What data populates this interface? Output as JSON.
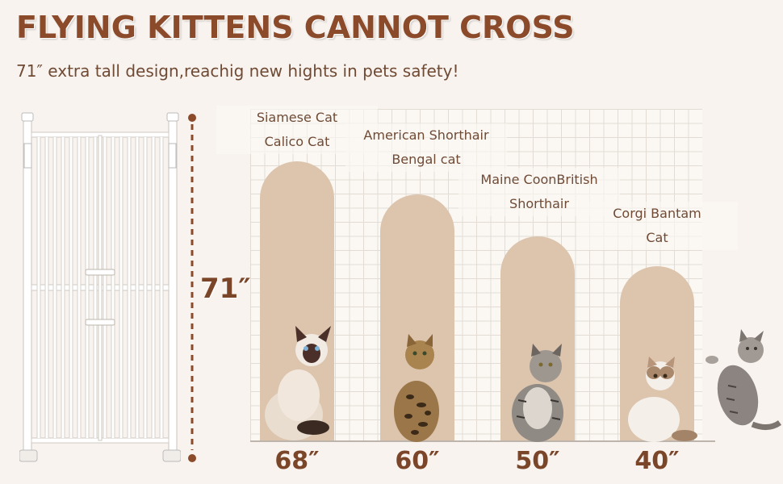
{
  "headline": "FLYING KITTENS CANNOT CROSS",
  "subheadline": "71″ extra tall design,reachig new hights in pets safety!",
  "gate_height": "71″",
  "colors": {
    "accent": "#8b4a2a",
    "arch": "#dcc4ad",
    "background": "#f8f3ee"
  },
  "bars": [
    {
      "breeds": [
        "Siamese Cat",
        "Calico Cat"
      ],
      "height_label": "68″",
      "height_in": 68
    },
    {
      "breeds": [
        "American Shorthair",
        "Bengal cat"
      ],
      "height_label": "60″",
      "height_in": 60
    },
    {
      "breeds": [
        "Maine CoonBritish",
        "Shorthair"
      ],
      "height_label": "50″",
      "height_in": 50
    },
    {
      "breeds": [
        "Corgi Bantam",
        "Cat"
      ],
      "height_label": "40″",
      "height_in": 40
    }
  ]
}
